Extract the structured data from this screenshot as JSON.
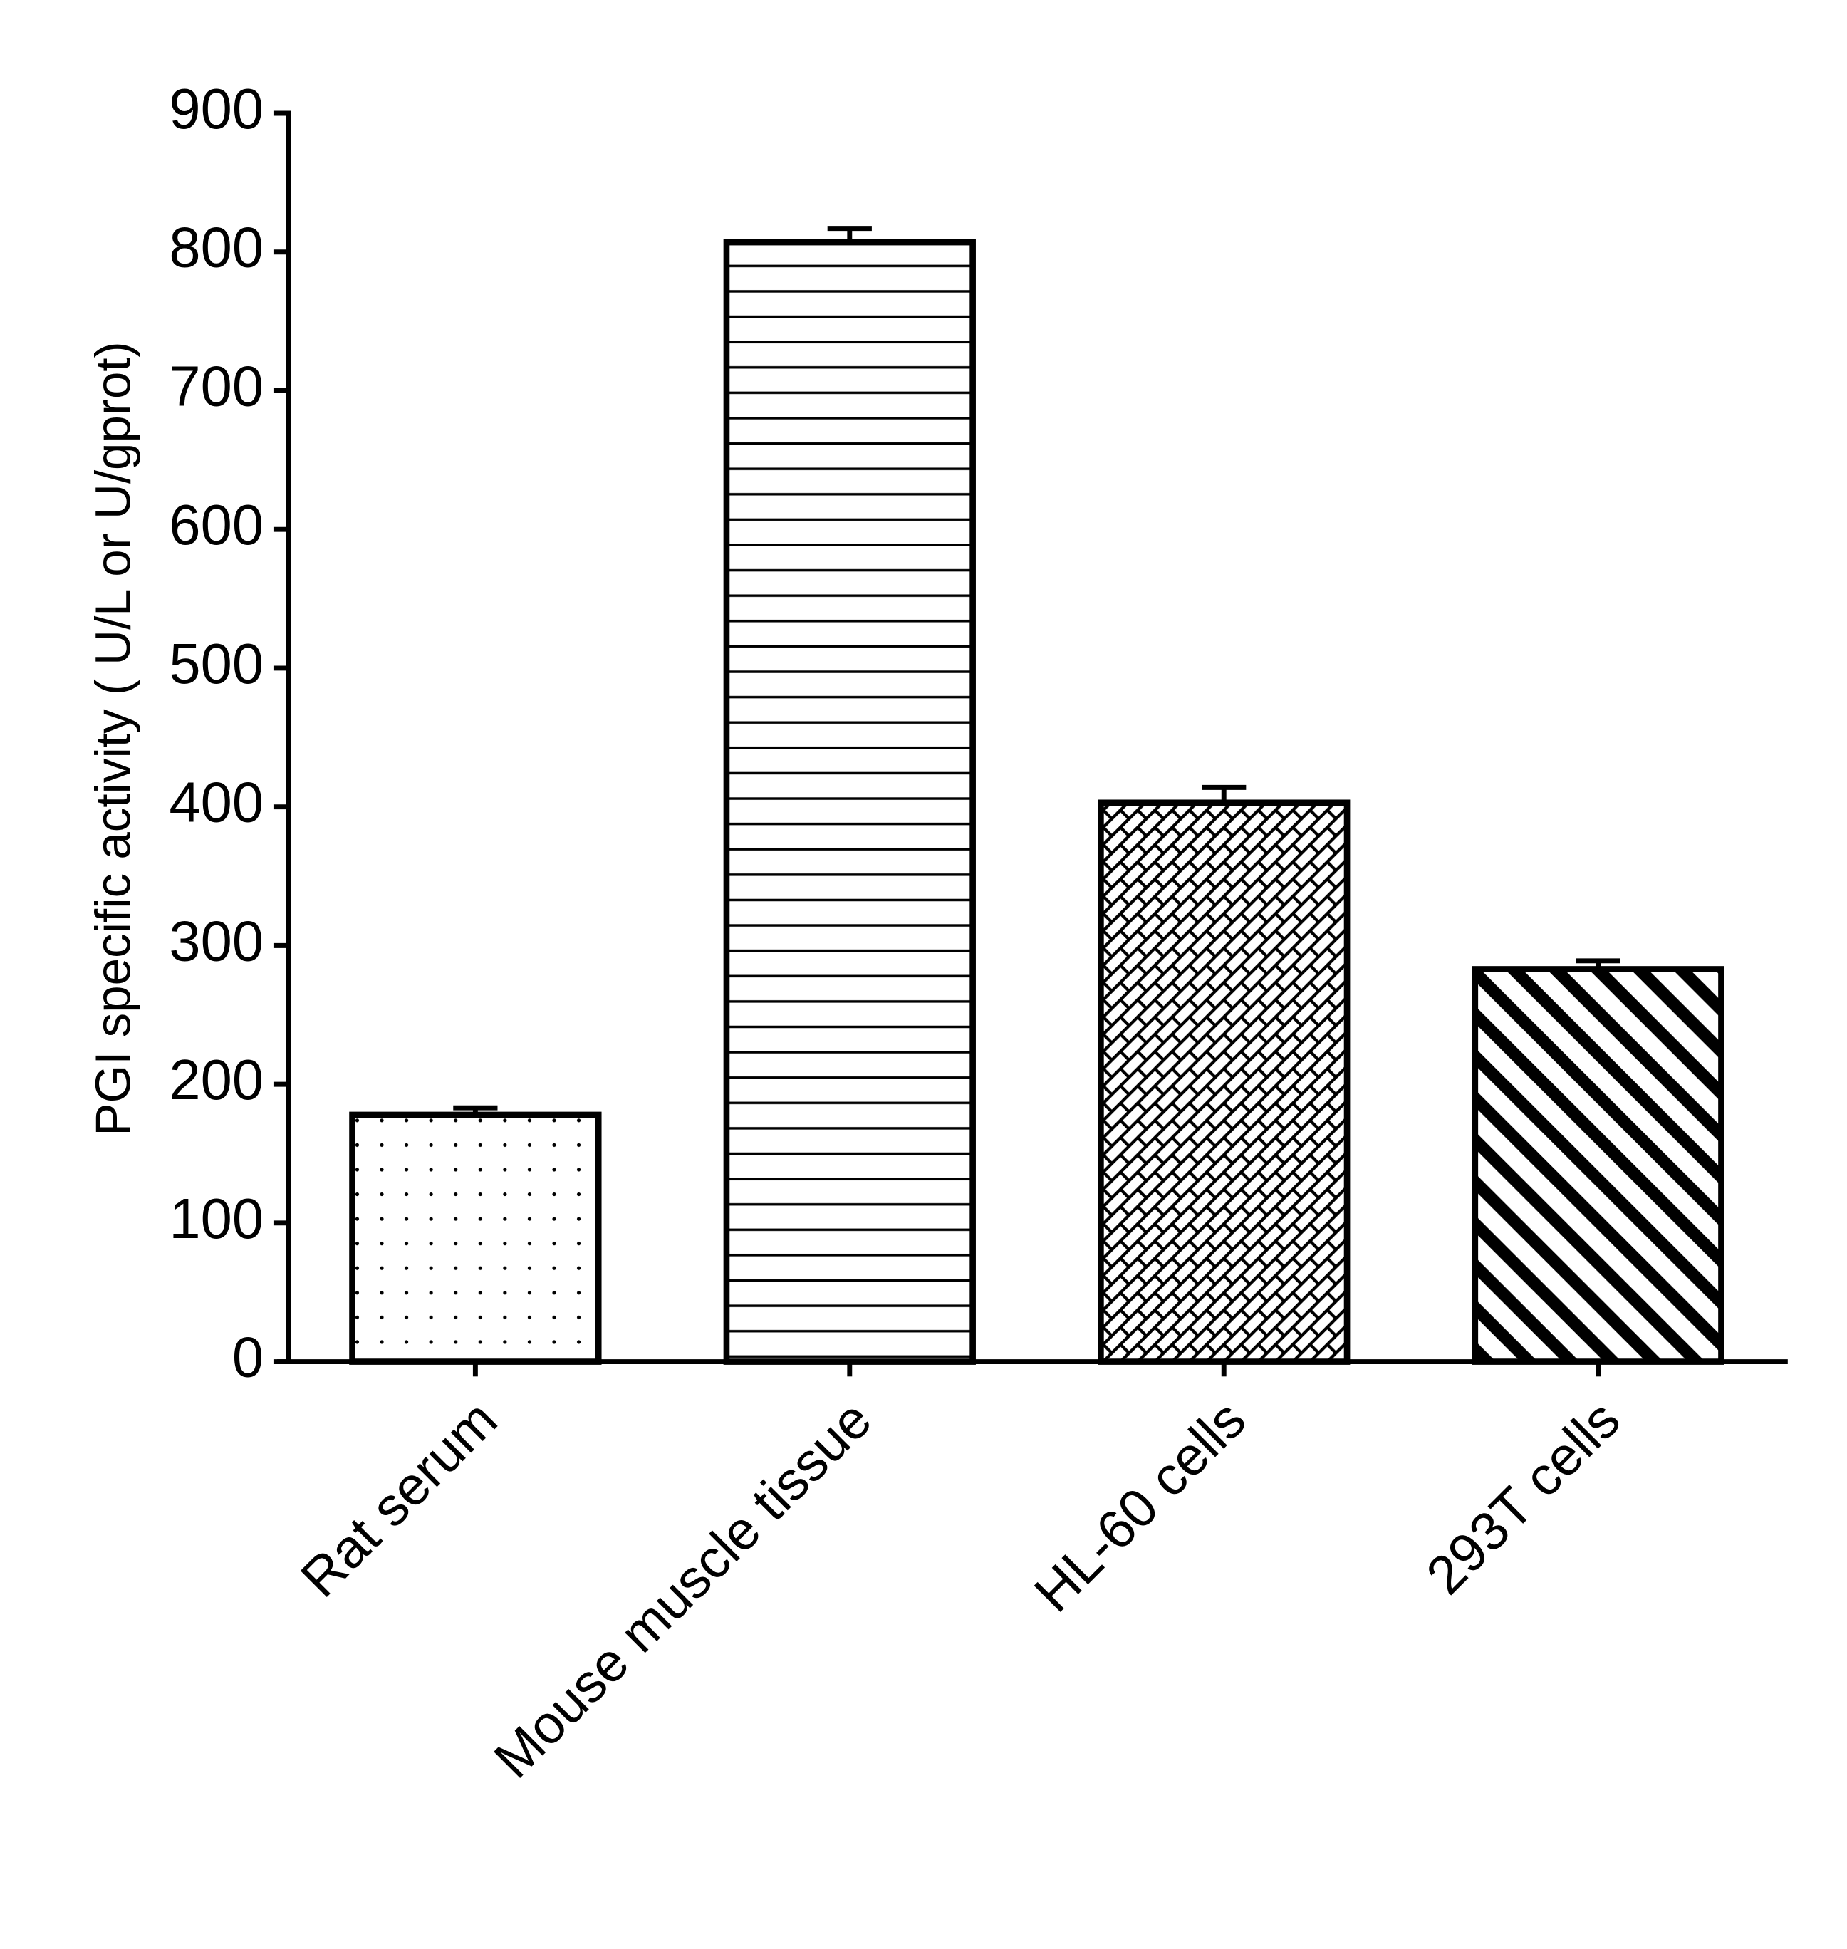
{
  "chart_data": {
    "type": "bar",
    "y_label": "PGI specific activity ( U/L or U/gprot)",
    "categories": [
      "Rat serum",
      "Mouse muscle tissue",
      "HL-60 cells",
      "293T cells"
    ],
    "values": [
      178,
      807,
      403,
      283
    ],
    "errors": [
      5,
      10,
      11,
      6
    ],
    "patterns": [
      "dots",
      "horizontal",
      "crosshatch",
      "diagonal"
    ],
    "color": "#000000",
    "ylim": [
      0,
      900
    ],
    "yticks": [
      0,
      100,
      200,
      300,
      400,
      500,
      600,
      700,
      800,
      900
    ]
  }
}
